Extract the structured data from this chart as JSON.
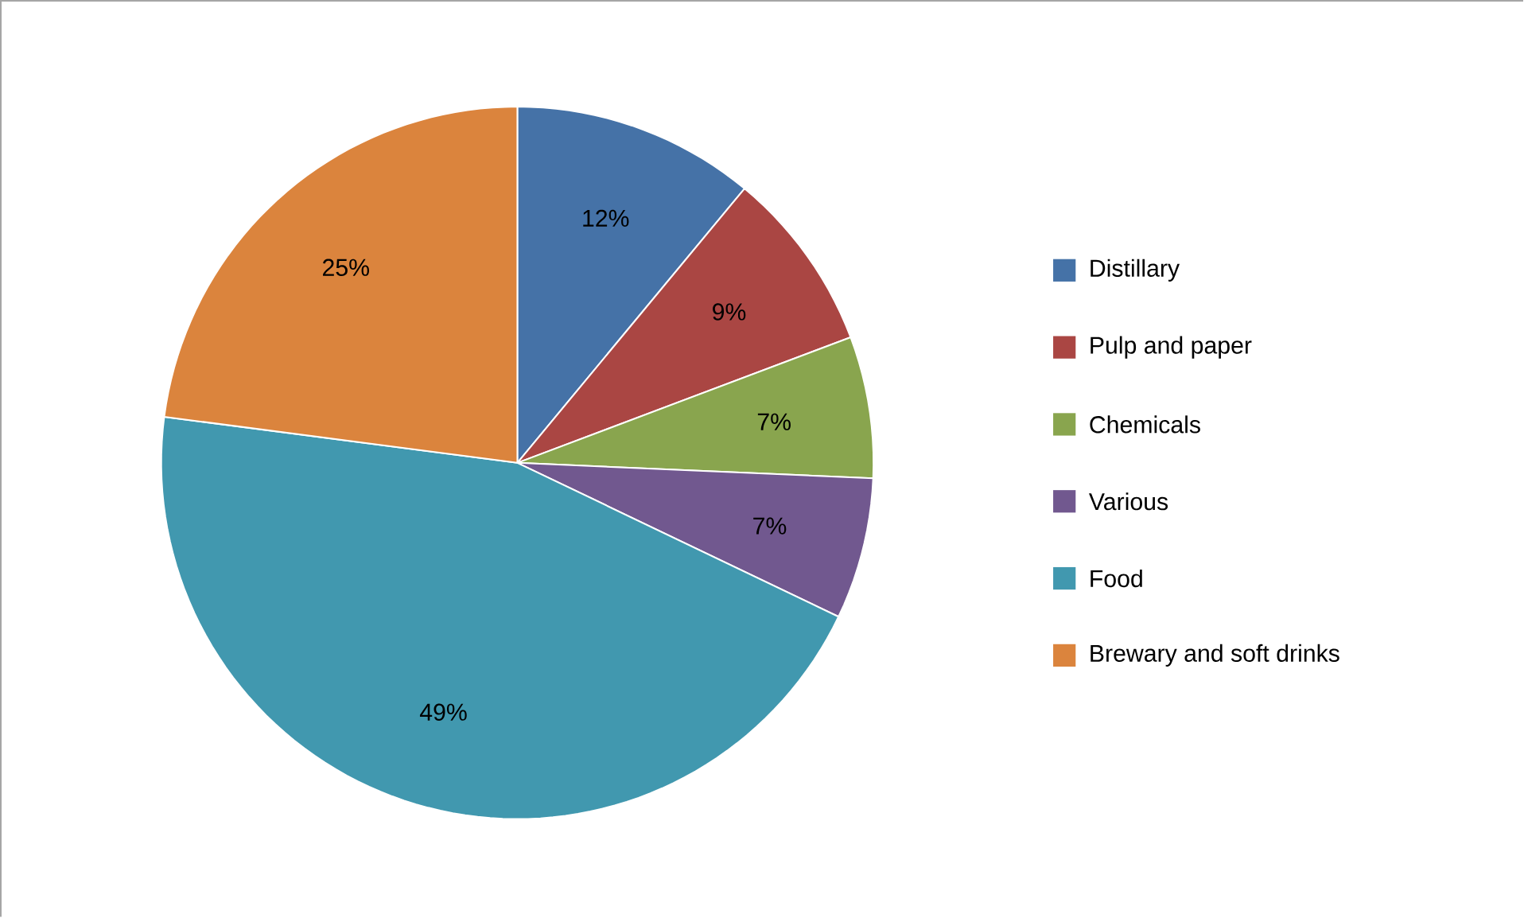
{
  "chart_data": {
    "type": "pie",
    "categories": [
      "Distillary",
      "Pulp and paper",
      "Chemicals",
      "Various",
      "Food",
      "Brewary and soft drinks"
    ],
    "values": [
      12,
      9,
      7,
      7,
      49,
      25
    ],
    "value_labels": [
      "12%",
      "9%",
      "7%",
      "7%",
      "49%",
      "25%"
    ],
    "colors": [
      "#4572a7",
      "#aa4643",
      "#89a54e",
      "#71588f",
      "#4198af",
      "#db843d"
    ],
    "legend": "right"
  }
}
